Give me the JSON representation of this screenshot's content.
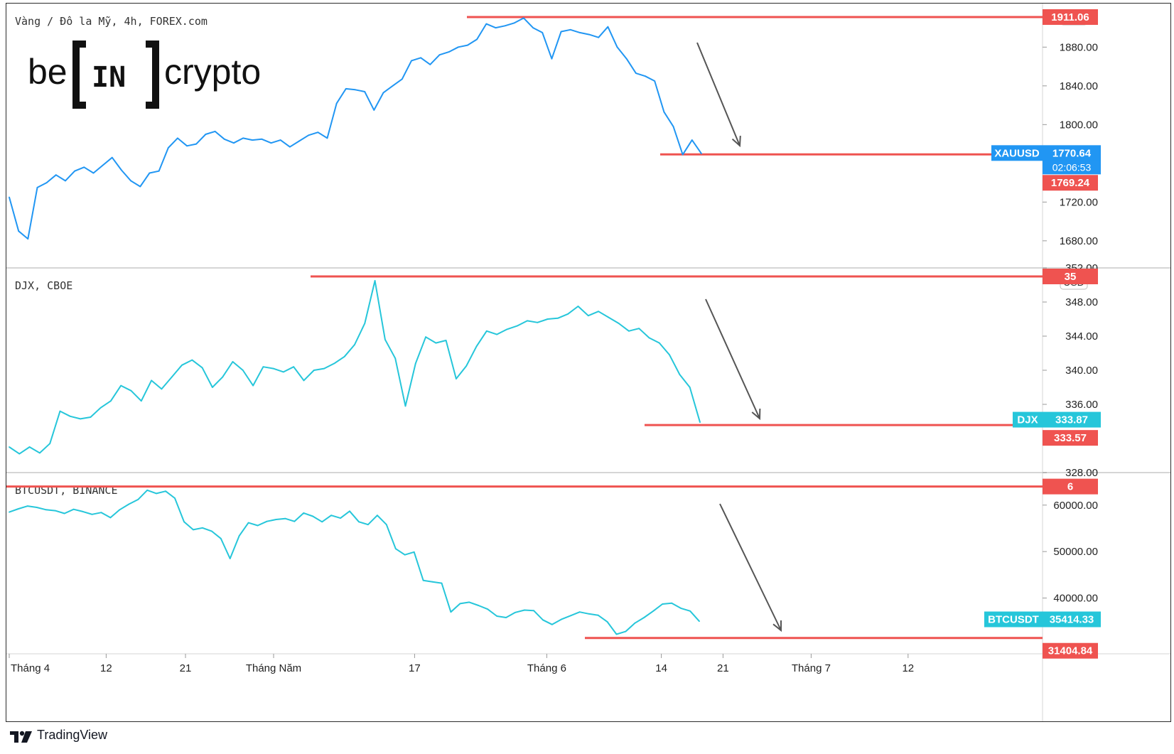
{
  "colors": {
    "xau": "#2196f3",
    "djx": "#26c6da",
    "btc": "#26c6da",
    "level": "#ef5350",
    "arrow": "#555555",
    "grid": "#d6d6d6",
    "text": "#222222"
  },
  "logo": {
    "text_left": "be",
    "text_mid": "IN",
    "text_right": "crypto"
  },
  "brand": {
    "label": "TradingView"
  },
  "x_axis": {
    "ticks": [
      {
        "label": "Tháng 4",
        "day": 0
      },
      {
        "label": "12",
        "day": 11
      },
      {
        "label": "21",
        "day": 20
      },
      {
        "label": "Tháng Năm",
        "day": 30
      },
      {
        "label": "17",
        "day": 46
      },
      {
        "label": "Tháng 6",
        "day": 61
      },
      {
        "label": "14",
        "day": 74
      },
      {
        "label": "21",
        "day": 81
      },
      {
        "label": "Tháng 7",
        "day": 91
      },
      {
        "label": "12",
        "day": 102
      }
    ]
  },
  "chart_data": [
    {
      "type": "line",
      "title": "Vàng / Đô la Mỹ, 4h, FOREX.com",
      "unit": "USD",
      "series": [
        {
          "name": "XAUUSD",
          "points": [
            [
              0,
              1725
            ],
            [
              1,
              1690
            ],
            [
              2,
              1682
            ],
            [
              3,
              1735
            ],
            [
              4,
              1740
            ],
            [
              5,
              1748
            ],
            [
              6,
              1742
            ],
            [
              7,
              1752
            ],
            [
              8,
              1756
            ],
            [
              9,
              1750
            ],
            [
              10,
              1758
            ],
            [
              11,
              1766
            ],
            [
              12,
              1753
            ],
            [
              13,
              1742
            ],
            [
              14,
              1736
            ],
            [
              15,
              1750
            ],
            [
              16,
              1752
            ],
            [
              17,
              1776
            ],
            [
              18,
              1786
            ],
            [
              19,
              1778
            ],
            [
              20,
              1780
            ],
            [
              21,
              1790
            ],
            [
              22,
              1793
            ],
            [
              23,
              1785
            ],
            [
              24,
              1781
            ],
            [
              25,
              1786
            ],
            [
              26,
              1784
            ],
            [
              27,
              1785
            ],
            [
              28,
              1781
            ],
            [
              29,
              1784
            ],
            [
              30,
              1777
            ],
            [
              31,
              1783
            ],
            [
              32,
              1789
            ],
            [
              33,
              1792
            ],
            [
              34,
              1786
            ],
            [
              35,
              1822
            ],
            [
              36,
              1837
            ],
            [
              37,
              1836
            ],
            [
              38,
              1834
            ],
            [
              39,
              1815
            ],
            [
              40,
              1833
            ],
            [
              41,
              1840
            ],
            [
              42,
              1847
            ],
            [
              43,
              1866
            ],
            [
              44,
              1869
            ],
            [
              45,
              1862
            ],
            [
              46,
              1872
            ],
            [
              47,
              1875
            ],
            [
              48,
              1880
            ],
            [
              49,
              1882
            ],
            [
              50,
              1888
            ],
            [
              51,
              1904
            ],
            [
              52,
              1900
            ],
            [
              53,
              1902
            ],
            [
              54,
              1905
            ],
            [
              55,
              1910
            ],
            [
              56,
              1900
            ],
            [
              57,
              1895
            ],
            [
              58,
              1868
            ],
            [
              59,
              1896
            ],
            [
              60,
              1898
            ],
            [
              61,
              1895
            ],
            [
              62,
              1893
            ],
            [
              63,
              1890
            ],
            [
              64,
              1901
            ],
            [
              65,
              1880
            ],
            [
              66,
              1868
            ],
            [
              67,
              1853
            ],
            [
              68,
              1850
            ],
            [
              69,
              1845
            ],
            [
              70,
              1813
            ],
            [
              71,
              1798
            ],
            [
              72,
              1769
            ],
            [
              73,
              1784
            ],
            [
              74,
              1770
            ]
          ]
        }
      ],
      "levels": [
        {
          "value": 1911.06,
          "label": "1911.06"
        },
        {
          "value": 1769.24,
          "label": "1769.24"
        }
      ],
      "last": {
        "symbol": "XAUUSD",
        "value": "1770.64",
        "countdown": "02:06:53"
      },
      "yticks": [
        "1680.00",
        "1720.00",
        "1800.00",
        "1840.00",
        "1880.00"
      ],
      "ylim": [
        1652,
        1925
      ]
    },
    {
      "type": "line",
      "title": "DJX, CBOE",
      "unit": "USD",
      "series": [
        {
          "name": "DJX",
          "points": [
            [
              0,
              331
            ],
            [
              1,
              330.2
            ],
            [
              2,
              331
            ],
            [
              3,
              330.3
            ],
            [
              4,
              331.4
            ],
            [
              5,
              335.2
            ],
            [
              6,
              334.6
            ],
            [
              7,
              334.3
            ],
            [
              8,
              334.5
            ],
            [
              9,
              335.6
            ],
            [
              10,
              336.4
            ],
            [
              11,
              338.2
            ],
            [
              12,
              337.6
            ],
            [
              13,
              336.4
            ],
            [
              14,
              338.8
            ],
            [
              15,
              337.8
            ],
            [
              16,
              339.2
            ],
            [
              17,
              340.6
            ],
            [
              18,
              341.2
            ],
            [
              19,
              340.3
            ],
            [
              20,
              338
            ],
            [
              21,
              339.2
            ],
            [
              22,
              341
            ],
            [
              23,
              340
            ],
            [
              24,
              338.2
            ],
            [
              25,
              340.4
            ],
            [
              26,
              340.2
            ],
            [
              27,
              339.8
            ],
            [
              28,
              340.4
            ],
            [
              29,
              338.8
            ],
            [
              30,
              340
            ],
            [
              31,
              340.2
            ],
            [
              32,
              340.8
            ],
            [
              33,
              341.6
            ],
            [
              34,
              343
            ],
            [
              35,
              345.5
            ],
            [
              36,
              350.5
            ],
            [
              37,
              343.6
            ],
            [
              38,
              341.4
            ],
            [
              39,
              335.8
            ],
            [
              40,
              340.8
            ],
            [
              41,
              343.9
            ],
            [
              42,
              343.2
            ],
            [
              43,
              343.5
            ],
            [
              44,
              339
            ],
            [
              45,
              340.5
            ],
            [
              46,
              342.8
            ],
            [
              47,
              344.6
            ],
            [
              48,
              344.2
            ],
            [
              49,
              344.8
            ],
            [
              50,
              345.2
            ],
            [
              51,
              345.8
            ],
            [
              52,
              345.6
            ],
            [
              53,
              346
            ],
            [
              54,
              346.1
            ],
            [
              55,
              346.6
            ],
            [
              56,
              347.5
            ],
            [
              57,
              346.4
            ],
            [
              58,
              346.9
            ],
            [
              59,
              346.2
            ],
            [
              60,
              345.5
            ],
            [
              61,
              344.6
            ],
            [
              62,
              344.9
            ],
            [
              63,
              343.8
            ],
            [
              64,
              343.2
            ],
            [
              65,
              341.8
            ],
            [
              66,
              339.5
            ],
            [
              67,
              338
            ],
            [
              68,
              333.9
            ]
          ]
        }
      ],
      "levels": [
        {
          "value": 351.0,
          "label": "35"
        },
        {
          "value": 333.57,
          "label": "333.57"
        }
      ],
      "last": {
        "symbol": "DJX",
        "value": "333.87"
      },
      "yticks": [
        "352.00",
        "348.00",
        "344.00",
        "340.00",
        "336.00",
        "328.00"
      ],
      "ylim": [
        328,
        352
      ]
    },
    {
      "type": "line",
      "title": "BTCUSDT, BINANCE",
      "unit": "USDT",
      "series": [
        {
          "name": "BTCUSDT",
          "points": [
            [
              0,
              58500
            ],
            [
              1,
              59200
            ],
            [
              2,
              59800
            ],
            [
              3,
              59500
            ],
            [
              4,
              59000
            ],
            [
              5,
              58800
            ],
            [
              6,
              58200
            ],
            [
              7,
              59100
            ],
            [
              8,
              58600
            ],
            [
              9,
              58000
            ],
            [
              10,
              58400
            ],
            [
              11,
              57300
            ],
            [
              12,
              59000
            ],
            [
              13,
              60200
            ],
            [
              14,
              61200
            ],
            [
              15,
              63200
            ],
            [
              16,
              62500
            ],
            [
              17,
              63000
            ],
            [
              18,
              61500
            ],
            [
              19,
              56400
            ],
            [
              20,
              54700
            ],
            [
              21,
              55100
            ],
            [
              22,
              54400
            ],
            [
              23,
              52800
            ],
            [
              24,
              48500
            ],
            [
              25,
              53400
            ],
            [
              26,
              56200
            ],
            [
              27,
              55600
            ],
            [
              28,
              56500
            ],
            [
              29,
              56900
            ],
            [
              30,
              57100
            ],
            [
              31,
              56500
            ],
            [
              32,
              58300
            ],
            [
              33,
              57600
            ],
            [
              34,
              56400
            ],
            [
              35,
              57800
            ],
            [
              36,
              57200
            ],
            [
              37,
              58700
            ],
            [
              38,
              56400
            ],
            [
              39,
              55800
            ],
            [
              40,
              57800
            ],
            [
              41,
              55800
            ],
            [
              42,
              50600
            ],
            [
              43,
              49300
            ],
            [
              44,
              49900
            ],
            [
              45,
              43800
            ],
            [
              46,
              43500
            ],
            [
              47,
              43200
            ],
            [
              48,
              37000
            ],
            [
              49,
              38800
            ],
            [
              50,
              39100
            ],
            [
              51,
              38400
            ],
            [
              52,
              37600
            ],
            [
              53,
              36100
            ],
            [
              54,
              35800
            ],
            [
              55,
              36900
            ],
            [
              56,
              37400
            ],
            [
              57,
              37300
            ],
            [
              58,
              35300
            ],
            [
              59,
              34300
            ],
            [
              60,
              35400
            ],
            [
              61,
              36200
            ],
            [
              62,
              37000
            ],
            [
              63,
              36600
            ],
            [
              64,
              36300
            ],
            [
              65,
              34900
            ],
            [
              66,
              32200
            ],
            [
              67,
              32800
            ],
            [
              68,
              34600
            ],
            [
              69,
              35800
            ],
            [
              70,
              37200
            ],
            [
              71,
              38700
            ],
            [
              72,
              38900
            ],
            [
              73,
              37800
            ],
            [
              74,
              37200
            ],
            [
              75,
              35000
            ]
          ]
        }
      ],
      "levels": [
        {
          "value": 64000,
          "label": "6"
        },
        {
          "value": 31404.84,
          "label": "31404.84"
        }
      ],
      "last": {
        "symbol": "BTCUSDT",
        "value": "35414.33"
      },
      "yticks": [
        "60000.00",
        "50000.00",
        "40000.00"
      ],
      "ylim": [
        28000,
        67000
      ]
    }
  ]
}
